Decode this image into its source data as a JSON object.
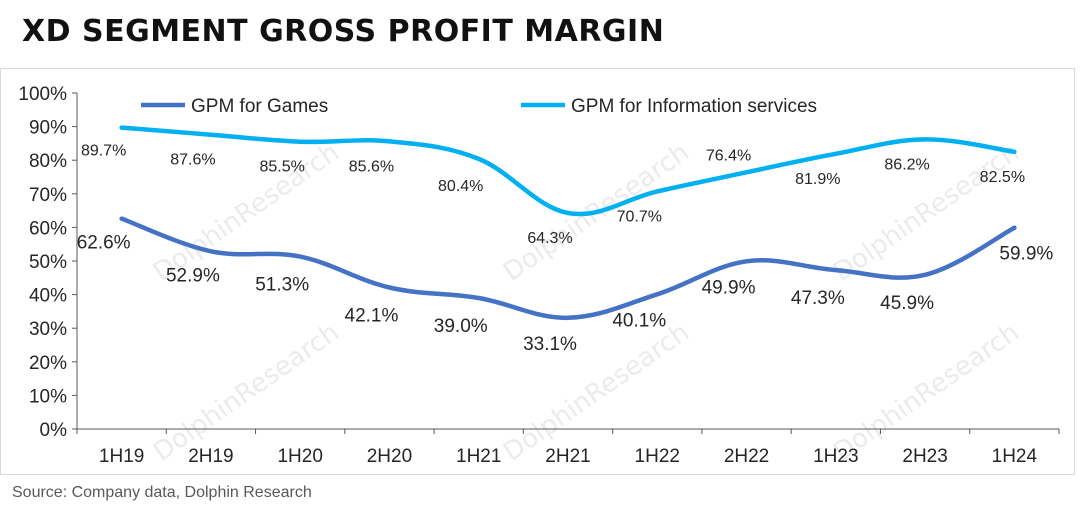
{
  "title": "XD SEGMENT GROSS PROFIT MARGIN",
  "source": "Source: Company data, Dolphin Research",
  "watermark": "DolphinResearch",
  "chart_data": {
    "type": "line",
    "title": "XD SEGMENT GROSS PROFIT MARGIN",
    "xlabel": "",
    "ylabel": "",
    "categories": [
      "1H19",
      "2H19",
      "1H20",
      "2H20",
      "1H21",
      "2H21",
      "1H22",
      "2H22",
      "1H23",
      "2H23",
      "1H24"
    ],
    "yticks": [
      "0%",
      "10%",
      "20%",
      "30%",
      "40%",
      "50%",
      "60%",
      "70%",
      "80%",
      "90%",
      "100%"
    ],
    "ylim": [
      0,
      100
    ],
    "grid": false,
    "legend": "top",
    "series": [
      {
        "name": "GPM for Games",
        "color": "#4472c4",
        "values": [
          62.6,
          52.9,
          51.3,
          42.1,
          39.0,
          33.1,
          40.1,
          49.9,
          47.3,
          45.9,
          59.9
        ],
        "labels": [
          "62.6%",
          "52.9%",
          "51.3%",
          "42.1%",
          "39.0%",
          "33.1%",
          "40.1%",
          "49.9%",
          "47.3%",
          "45.9%",
          "59.9%"
        ]
      },
      {
        "name": "GPM for Information services",
        "color": "#00b0f0",
        "values": [
          89.7,
          87.6,
          85.5,
          85.6,
          80.4,
          64.3,
          70.7,
          76.4,
          81.9,
          86.2,
          82.5
        ],
        "labels": [
          "89.7%",
          "87.6%",
          "85.5%",
          "85.6%",
          "80.4%",
          "64.3%",
          "70.7%",
          "76.4%",
          "81.9%",
          "86.2%",
          "82.5%"
        ]
      }
    ]
  }
}
